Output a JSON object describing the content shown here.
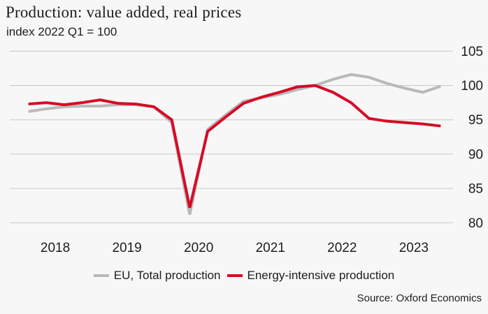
{
  "header": {
    "title": "Production: value added, real prices",
    "subtitle": "index 2022 Q1 = 100"
  },
  "legend": [
    {
      "label": "EU, Total production",
      "color": "#b9b9b9"
    },
    {
      "label": "Energy-intensive production",
      "color": "#d60b26"
    }
  ],
  "source": "Source: Oxford Economics",
  "colors": {
    "background": "#f7f7f7",
    "grid": "#c8c8c8",
    "text": "#1d1d1b",
    "eu_total": "#b9b9b9",
    "energy_intensive": "#d60b26"
  },
  "chart_data": {
    "type": "line",
    "title": "Production: value added, real prices",
    "subtitle": "index 2022 Q1 = 100",
    "x_unit": "quarter",
    "categories": [
      "2018 Q1",
      "2018 Q2",
      "2018 Q3",
      "2018 Q4",
      "2019 Q1",
      "2019 Q2",
      "2019 Q3",
      "2019 Q4",
      "2020 Q1",
      "2020 Q2",
      "2020 Q3",
      "2020 Q4",
      "2021 Q1",
      "2021 Q2",
      "2021 Q3",
      "2021 Q4",
      "2022 Q1",
      "2022 Q2",
      "2022 Q3",
      "2022 Q4",
      "2023 Q1",
      "2023 Q2",
      "2023 Q3",
      "2023 Q4"
    ],
    "series": [
      {
        "name": "EU, Total production",
        "color": "#b9b9b9",
        "values": [
          96.2,
          96.6,
          96.9,
          97.0,
          97.0,
          97.2,
          97.2,
          96.9,
          94.6,
          81.2,
          93.6,
          95.7,
          97.7,
          98.2,
          98.7,
          99.4,
          100.0,
          100.9,
          101.6,
          101.2,
          100.3,
          99.6,
          99.0,
          99.9
        ]
      },
      {
        "name": "Energy-intensive production",
        "color": "#d60b26",
        "values": [
          97.3,
          97.5,
          97.2,
          97.5,
          97.9,
          97.4,
          97.3,
          96.9,
          95.0,
          82.2,
          93.3,
          95.4,
          97.4,
          98.3,
          99.0,
          99.8,
          100.0,
          99.0,
          97.5,
          95.2,
          94.8,
          94.6,
          94.4,
          94.1
        ]
      }
    ],
    "x_tick_labels": [
      "2018",
      "2019",
      "2020",
      "2021",
      "2022",
      "2023"
    ],
    "y_ticks": [
      105,
      100,
      95,
      90,
      85,
      80
    ],
    "ylim": [
      80,
      105
    ],
    "grid": "horizontal",
    "legend_position": "bottom",
    "y_axis_side": "right"
  }
}
